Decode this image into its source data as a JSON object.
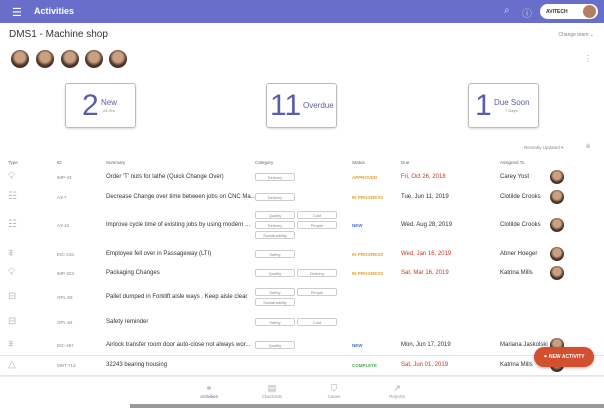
{
  "header": {
    "title": "Activities",
    "menu_icon": "hamburger-icon",
    "brand": "AVITECH"
  },
  "page": {
    "title": "DMS1 - Machine shop",
    "change_team": "Change team ⌄"
  },
  "cards": [
    {
      "number": "2",
      "label": "New",
      "sub": "24 Hrs"
    },
    {
      "number": "11",
      "label": "Overdue",
      "sub": ""
    },
    {
      "number": "1",
      "label": "Due Soon",
      "sub": "7 Days"
    }
  ],
  "sort": {
    "label": "Recently Updated ▾"
  },
  "columns": [
    "Type",
    "ID",
    "Summary",
    "Category",
    "Status",
    "Due",
    "Assigned To"
  ],
  "rows": [
    {
      "icon": "lightbulb-icon",
      "id": "IMP-43",
      "summary": "Order 'T' nuts for lathe (Quick Change Over)",
      "categories": [
        "Delivery"
      ],
      "status": "APPROVED",
      "due": "Fri, Oct 26, 2018",
      "assigned": "Carey Yost"
    },
    {
      "icon": "checklist-icon",
      "id": "A3-7",
      "summary": "Decrease Change over time between jobs on CNC Ma...",
      "categories": [
        "Delivery"
      ],
      "status": "IN PROGRESS",
      "due": "Tue, Jun 11, 2019",
      "assigned": "Clotilde Crooks"
    },
    {
      "icon": "checklist-icon",
      "id": "A3-10",
      "summary": "Improve cycle time of existing jobs by using modern ...",
      "categories": [
        "Quality",
        "Cost",
        "Delivery",
        "People",
        "Sustainability"
      ],
      "status": "NEW",
      "due": "Wed, Aug 28, 2019",
      "assigned": "Clotilde Crooks"
    },
    {
      "icon": "barrier-icon",
      "id": "INC-415",
      "summary": "Employee fell over in Passageway (LTI)",
      "categories": [
        "Safety"
      ],
      "status": "IN PROGRESS",
      "due": "Wed, Jan 16, 2019",
      "assigned": "Abner Hoeger"
    },
    {
      "icon": "lightbulb-icon",
      "id": "IMP-323",
      "summary": "Packaging Changes",
      "categories": [
        "Quality",
        "Delivery"
      ],
      "status": "IN PROGRESS",
      "due": "Sat, Mar 16, 2019",
      "assigned": "Katrina Mills"
    },
    {
      "icon": "presentation-icon",
      "id": "OPL-83",
      "summary": "Pallet dumped in Forklift aisle ways . Keep aisle clear",
      "categories": [
        "Safety",
        "People",
        "Sustainability"
      ],
      "status": "",
      "due": "",
      "assigned": ""
    },
    {
      "icon": "presentation-icon",
      "id": "OPL-84",
      "summary": "Safety reminder",
      "categories": [
        "Safety",
        "Cost"
      ],
      "status": "",
      "due": "",
      "assigned": ""
    },
    {
      "icon": "barrier-icon",
      "id": "INC-467",
      "summary": "Airlock transfer room door auto-close not always wor...",
      "categories": [
        "Quality"
      ],
      "status": "NEW",
      "due": "Mon, Jun 17, 2019",
      "assigned": "Mariana Jaskolski"
    },
    {
      "icon": "cone-icon",
      "id": "MNT-713",
      "summary": "32243 bearing housing",
      "categories": [],
      "status": "COMPLETE",
      "due": "Sat, Jun 01, 2019",
      "assigned": "Katrina Mills"
    }
  ],
  "status_colors": {
    "APPROVED": "#e0a030",
    "IN PROGRESS": "#e0a030",
    "NEW": "#4a6cc8",
    "COMPLETE": "#4caf50"
  },
  "overdue_color": "#c0392b",
  "fab": {
    "label": "NEW ACTIVITY",
    "color": "#d2502f"
  },
  "nav": [
    {
      "label": "Activities",
      "icon": "activities-icon",
      "active": true
    },
    {
      "label": "Checklists",
      "icon": "checklist-icon"
    },
    {
      "label": "Cases",
      "icon": "shield-icon"
    },
    {
      "label": "Reports",
      "icon": "chart-line-icon"
    }
  ]
}
